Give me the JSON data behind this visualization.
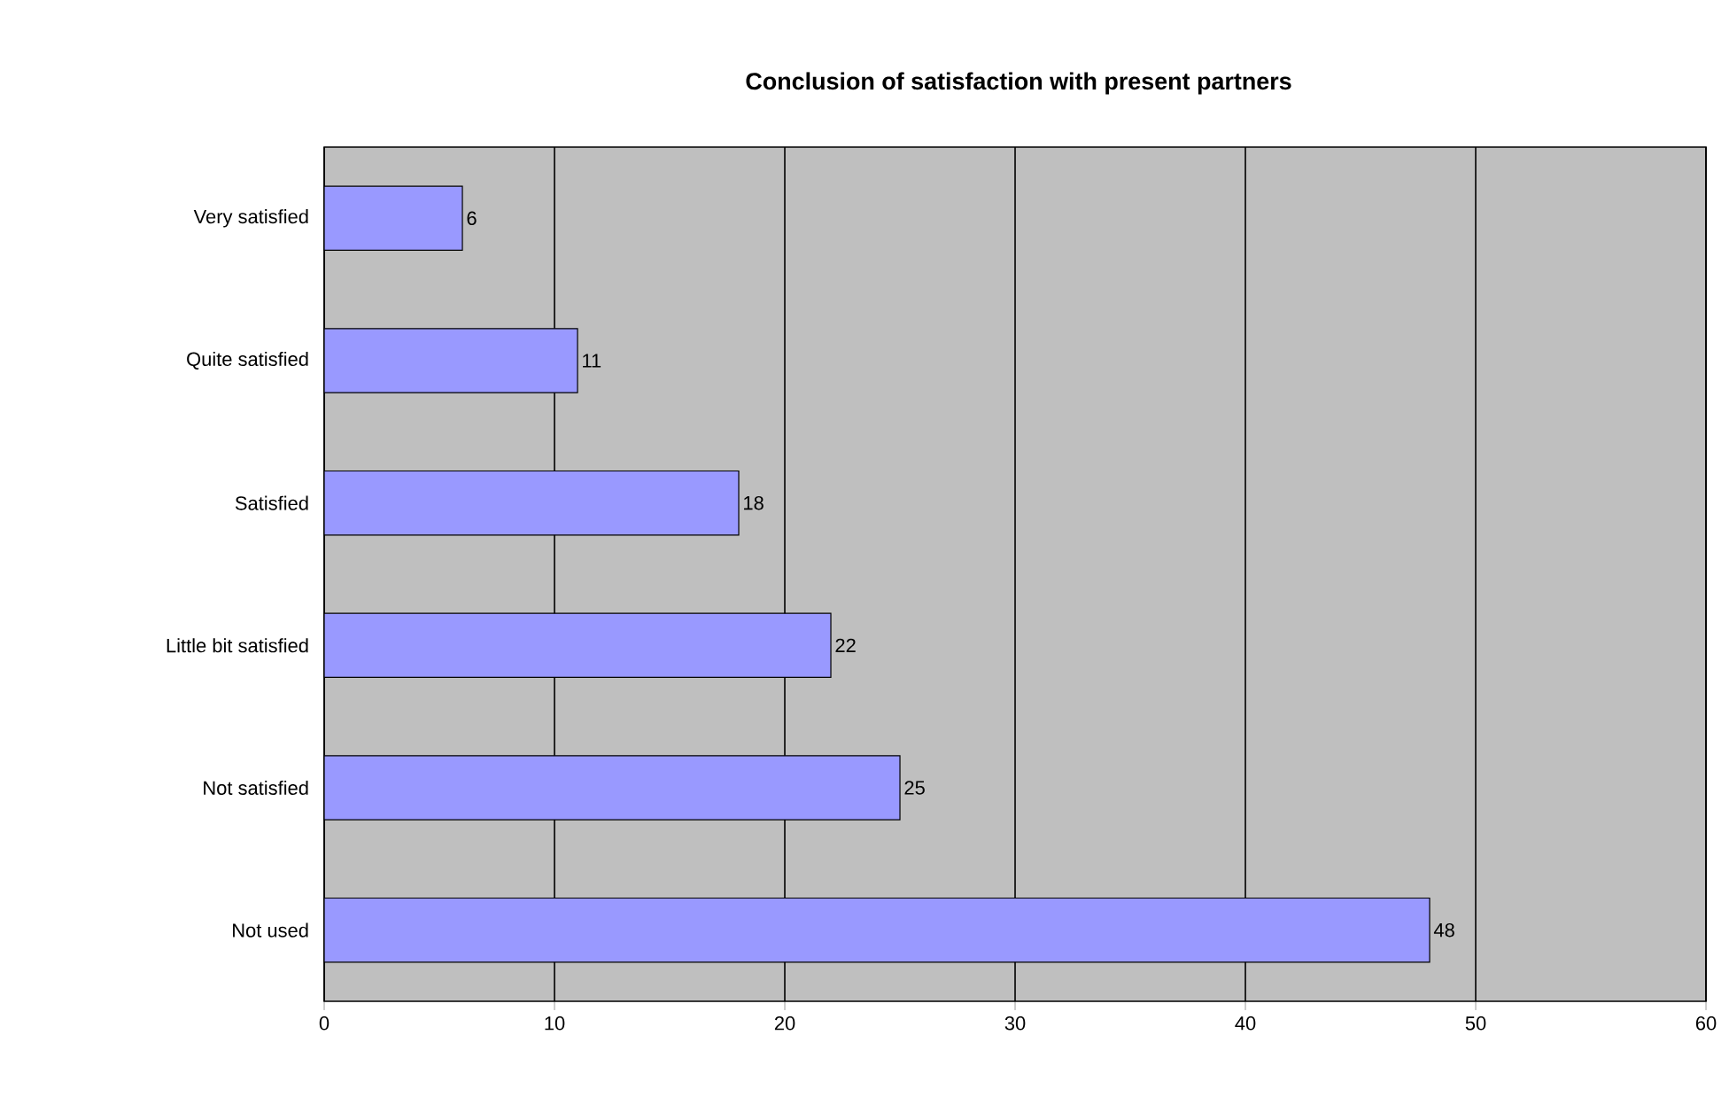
{
  "chart_data": {
    "type": "bar",
    "orientation": "horizontal",
    "title": "Conclusion of satisfaction with present partners",
    "categories": [
      "Very satisfied",
      "Quite satisfied",
      "Satisfied",
      "Little bit satisfied",
      "Not satisfied",
      "Not used"
    ],
    "values": [
      6,
      11,
      18,
      22,
      25,
      48
    ],
    "color": "#9999ff",
    "xlim": [
      0,
      60
    ],
    "xticks": [
      0,
      10,
      20,
      30,
      40,
      50,
      60
    ],
    "grid": "x",
    "data_labels": true
  }
}
